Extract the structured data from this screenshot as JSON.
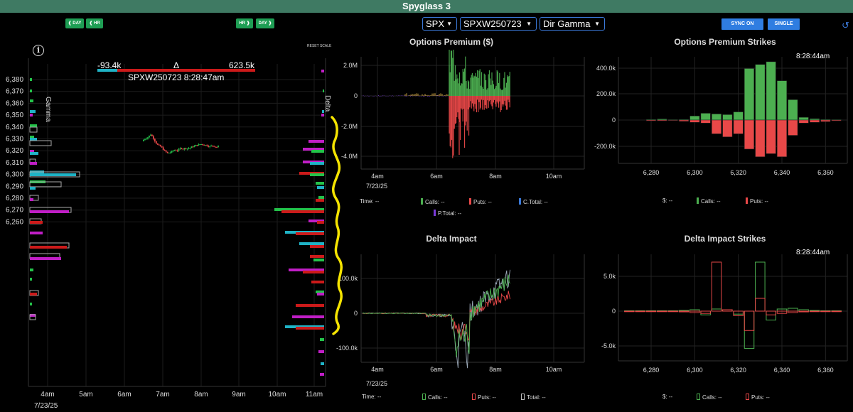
{
  "title": "Spyglass 3",
  "left_buttons": {
    "day_back": "❰ DAY",
    "hr_back": "❰ HR",
    "hr_fwd": "HR ❱",
    "day_fwd": "DAY ❱"
  },
  "selectors": {
    "symbol": "SPX",
    "option": "SPXW250723",
    "metric": "Dir Gamma"
  },
  "right_buttons": {
    "sync": "SYNC ON",
    "single": "SINGLE"
  },
  "reset_scale": "RESET SCALE",
  "delta_bar": {
    "min_label": "-93.4k",
    "symbol": "Δ",
    "max_label": "623.5k",
    "caption": "SPXW250723 8:28:47am"
  },
  "main_chart": {
    "gamma_label": "Gamma",
    "delta_label": "Delta",
    "y_ticks": [
      "6,380",
      "6,370",
      "6,360",
      "6,350",
      "6,340",
      "6,330",
      "6,320",
      "6,310",
      "6,300",
      "6,290",
      "6,280",
      "6,270",
      "6,260"
    ],
    "x_ticks": [
      "4am",
      "5am",
      "6am",
      "7am",
      "8am",
      "9am",
      "10am",
      "11am"
    ],
    "date": "7/23/25"
  },
  "premium_chart": {
    "title": "Options Premium ($)",
    "y_ticks": [
      "2.0M",
      "0",
      "-2.0M",
      "-4.0M"
    ],
    "x_ticks": [
      "4am",
      "6am",
      "8am",
      "10am"
    ],
    "date": "7/23/25",
    "legend": {
      "time": "Time: --",
      "calls": "Calls: --",
      "puts": "Puts: --",
      "ctotal": "C.Total: --",
      "ptotal": "P.Total: --"
    }
  },
  "delta_impact_chart": {
    "title": "Delta Impact",
    "y_ticks": [
      "100.0k",
      "0",
      "-100.0k"
    ],
    "x_ticks": [
      "4am",
      "6am",
      "8am",
      "10am"
    ],
    "date": "7/23/25",
    "legend": {
      "time": "Time: --",
      "calls": "Calls: --",
      "puts": "Puts: --",
      "total": "Total: --"
    }
  },
  "premium_strikes_chart": {
    "title": "Options Premium Strikes",
    "timestamp": "8:28:44am",
    "y_ticks": [
      "400.0k",
      "200.0k",
      "0",
      "-200.0k"
    ],
    "x_ticks": [
      "6,280",
      "6,300",
      "6,320",
      "6,340",
      "6,360"
    ],
    "legend": {
      "dollar": "$: --",
      "calls": "Calls: --",
      "puts": "Puts: --"
    }
  },
  "delta_strikes_chart": {
    "title": "Delta Impact Strikes",
    "timestamp": "8:28:44am",
    "y_ticks": [
      "5.0k",
      "0",
      "-5.0k"
    ],
    "x_ticks": [
      "6,280",
      "6,300",
      "6,320",
      "6,340",
      "6,360"
    ],
    "legend": {
      "dollar": "$: --",
      "calls": "Calls: --",
      "puts": "Puts: --"
    }
  },
  "chart_data": [
    {
      "type": "bar",
      "title": "Options Premium Strikes",
      "xlabel": "",
      "ylabel": "",
      "ylim": [
        -260000,
        440000
      ],
      "categories": [
        6280,
        6285,
        6290,
        6295,
        6300,
        6305,
        6310,
        6315,
        6320,
        6325,
        6330,
        6335,
        6340,
        6345,
        6350,
        6355,
        6360,
        6365
      ],
      "series": [
        {
          "name": "Calls",
          "color": "#4caf50",
          "values": [
            5000,
            8000,
            3000,
            5000,
            30000,
            50000,
            45000,
            40000,
            60000,
            380000,
            410000,
            430000,
            290000,
            150000,
            20000,
            10000,
            5000,
            3000
          ]
        },
        {
          "name": "Puts",
          "color": "#e84848",
          "values": [
            -5000,
            -5000,
            -3000,
            -8000,
            -15000,
            -20000,
            -90000,
            -110000,
            -90000,
            -190000,
            -240000,
            -220000,
            -240000,
            -100000,
            -20000,
            -15000,
            -10000,
            -5000
          ]
        }
      ]
    },
    {
      "type": "bar",
      "title": "Delta Impact Strikes",
      "xlabel": "",
      "ylabel": "",
      "ylim": [
        -6200,
        7500
      ],
      "categories": [
        6270,
        6275,
        6280,
        6285,
        6290,
        6295,
        6300,
        6305,
        6310,
        6315,
        6320,
        6325,
        6330,
        6335,
        6340,
        6345,
        6350,
        6355,
        6360,
        6365
      ],
      "series": [
        {
          "name": "Calls",
          "color": "#4caf50",
          "values": [
            50,
            50,
            50,
            50,
            50,
            100,
            200,
            -500,
            300,
            200,
            -400,
            -5000,
            6900,
            -1200,
            300,
            400,
            200,
            100,
            50,
            50
          ]
        },
        {
          "name": "Puts",
          "color": "#e84848",
          "values": [
            -50,
            -50,
            -50,
            -50,
            -50,
            -100,
            -200,
            -300,
            6900,
            200,
            -600,
            -2600,
            1800,
            -500,
            -300,
            -200,
            -100,
            -50,
            -50,
            -50
          ]
        }
      ]
    },
    {
      "type": "line",
      "title": "Options Premium ($)",
      "x": [
        "04:00",
        "05:00",
        "06:00",
        "07:00",
        "08:00",
        "09:00",
        "10:00"
      ],
      "ylim": [
        -4500000,
        2300000
      ],
      "series": [
        {
          "name": "Calls",
          "color": "#4caf50",
          "values": [
            0,
            0,
            50000,
            300000,
            900000,
            0,
            0
          ]
        },
        {
          "name": "Puts",
          "color": "#e84848",
          "values": [
            0,
            0,
            -50000,
            -800000,
            -700000,
            0,
            0
          ]
        }
      ]
    },
    {
      "type": "line",
      "title": "Delta Impact",
      "x": [
        "04:00",
        "05:00",
        "06:00",
        "07:00",
        "08:00",
        "08:30"
      ],
      "ylim": [
        -115000,
        150000
      ],
      "series": [
        {
          "name": "Calls",
          "color": "#4caf50",
          "values": [
            0,
            0,
            -5000,
            -50000,
            60000,
            120000
          ]
        },
        {
          "name": "Puts",
          "color": "#e84848",
          "values": [
            0,
            0,
            -5000,
            -20000,
            30000,
            40000
          ]
        },
        {
          "name": "Total",
          "color": "#aaaaaa",
          "values": [
            0,
            0,
            -3000,
            -40000,
            70000,
            130000
          ]
        }
      ]
    }
  ]
}
